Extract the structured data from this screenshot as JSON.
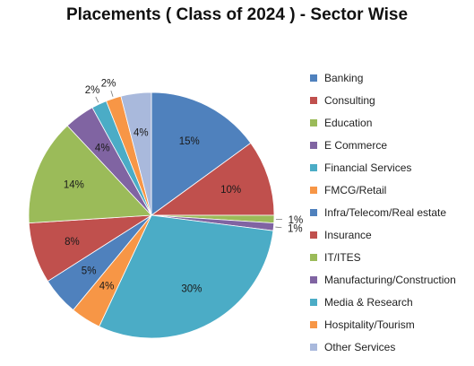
{
  "chart_data": {
    "type": "pie",
    "title": "Placements ( Class of 2024 ) - Sector Wise",
    "slices": [
      {
        "name": "Banking",
        "value": 15,
        "label": "15%",
        "color": "#4f81bd"
      },
      {
        "name": "Consulting",
        "value": 10,
        "label": "10%",
        "color": "#c0504d"
      },
      {
        "name": "Education",
        "value": 1,
        "label": "1%",
        "color": "#9bbb59"
      },
      {
        "name": "E Commerce",
        "value": 1,
        "label": "1%",
        "color": "#8064a2"
      },
      {
        "name": "Financial Services",
        "value": 30,
        "label": "30%",
        "color": "#4bacc6"
      },
      {
        "name": "FMCG/Retail",
        "value": 4,
        "label": "4%",
        "color": "#f79646"
      },
      {
        "name": "Infra/Telecom/Real estate",
        "value": 5,
        "label": "5%",
        "color": "#4f81bd"
      },
      {
        "name": "Insurance",
        "value": 8,
        "label": "8%",
        "color": "#c0504d"
      },
      {
        "name": "IT/ITES",
        "value": 14,
        "label": "14%",
        "color": "#9bbb59"
      },
      {
        "name": "Manufacturing/Construction",
        "value": 4,
        "label": "4%",
        "color": "#8064a2"
      },
      {
        "name": "Media & Research",
        "value": 2,
        "label": "2%",
        "color": "#4bacc6"
      },
      {
        "name": "Hospitality/Tourism",
        "value": 2,
        "label": "2%",
        "color": "#f79646"
      },
      {
        "name": "Other Services",
        "value": 4,
        "label": "4%",
        "color": "#a9b9dc"
      }
    ],
    "legend_position": "right"
  }
}
